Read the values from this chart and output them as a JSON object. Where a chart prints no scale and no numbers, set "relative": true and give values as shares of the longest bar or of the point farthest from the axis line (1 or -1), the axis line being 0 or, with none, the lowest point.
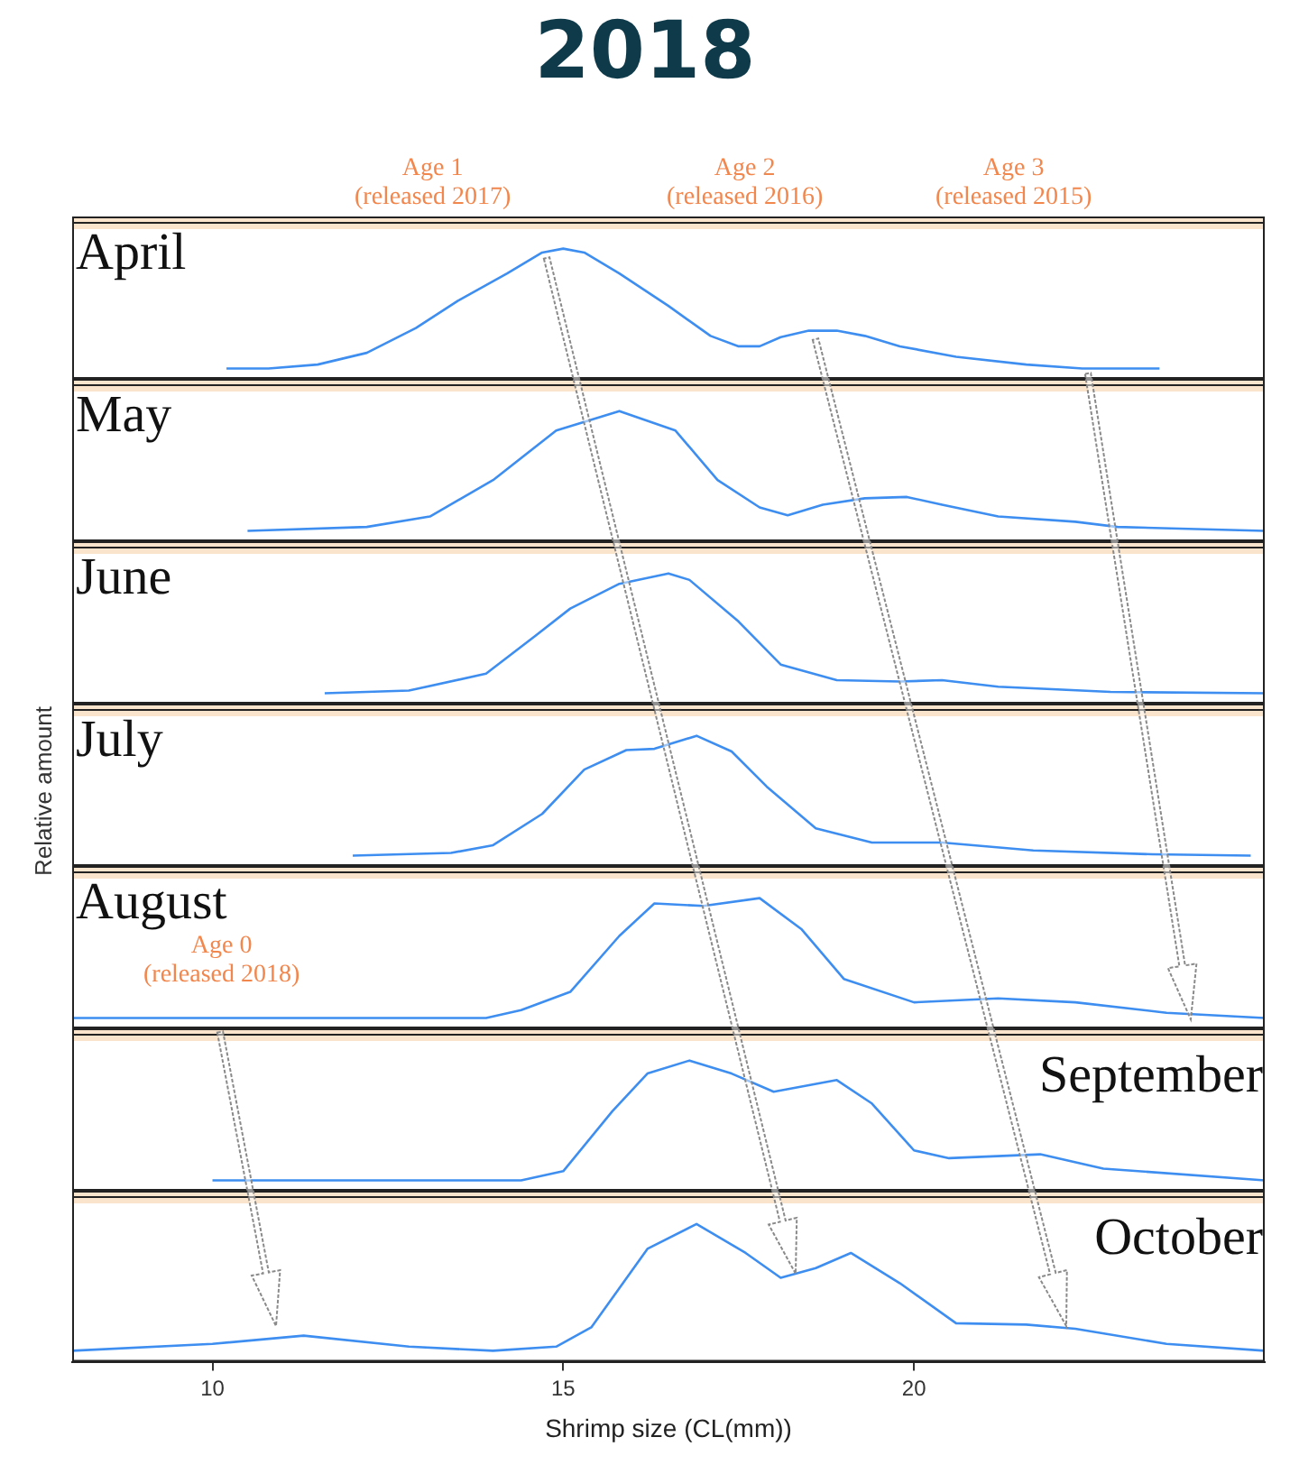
{
  "chart_data": [
    {
      "type": "line",
      "title": "2018",
      "subtitle": "April",
      "relative": true,
      "xlim": [
        8,
        25
      ],
      "xticks": [
        10,
        15,
        20
      ],
      "tick_labels": false,
      "marker": "none",
      "annotations": [
        "Age 1\n(released 2017)",
        "Age 2\n(released 2016)",
        "Age 3\n(released 2015)"
      ],
      "x": [
        10.2,
        10.8,
        11.5,
        12.2,
        12.9,
        13.5,
        14.2,
        14.7,
        15.0,
        15.3,
        15.8,
        16.5,
        17.1,
        17.5,
        17.8,
        18.1,
        18.5,
        18.9,
        19.3,
        19.8,
        20.6,
        21.6,
        22.4,
        23.5
      ],
      "series": [
        {
          "color": "#3d8ef0",
          "values": [
            0.08,
            0.08,
            0.11,
            0.2,
            0.39,
            0.6,
            0.81,
            0.97,
            1,
            0.97,
            0.81,
            0.56,
            0.33,
            0.25,
            0.25,
            0.32,
            0.37,
            0.37,
            0.33,
            0.25,
            0.17,
            0.11,
            0.08,
            0.08
          ]
        }
      ]
    },
    {
      "type": "line",
      "subtitle": "May",
      "relative": true,
      "xlim": [
        8,
        25
      ],
      "xticks": [
        10,
        15,
        20
      ],
      "tick_labels": false,
      "marker": "none",
      "x": [
        10.5,
        12.2,
        13.1,
        14.0,
        14.9,
        15.8,
        16.6,
        17.2,
        17.8,
        18.2,
        18.7,
        19.3,
        19.9,
        20.4,
        21.2,
        22.3,
        22.9,
        25.0
      ],
      "series": [
        {
          "color": "#3d8ef0",
          "values": [
            0.08,
            0.11,
            0.19,
            0.47,
            0.85,
            1,
            0.85,
            0.47,
            0.26,
            0.2,
            0.28,
            0.33,
            0.34,
            0.28,
            0.19,
            0.15,
            0.11,
            0.08
          ]
        }
      ]
    },
    {
      "type": "line",
      "subtitle": "June",
      "relative": true,
      "xlim": [
        8,
        25
      ],
      "xticks": [
        10,
        15,
        20
      ],
      "tick_labels": false,
      "marker": "none",
      "x": [
        11.6,
        12.8,
        13.9,
        14.6,
        15.1,
        15.8,
        16.5,
        16.8,
        17.5,
        18.1,
        18.9,
        19.8,
        20.4,
        21.2,
        22.8,
        25.0
      ],
      "series": [
        {
          "color": "#3d8ef0",
          "values": [
            0.08,
            0.1,
            0.23,
            0.52,
            0.73,
            0.92,
            1,
            0.95,
            0.63,
            0.3,
            0.18,
            0.17,
            0.18,
            0.13,
            0.09,
            0.08
          ]
        }
      ]
    },
    {
      "type": "line",
      "subtitle": "July",
      "ylabel": "Relative amount",
      "relative": true,
      "xlim": [
        8,
        25
      ],
      "xticks": [
        10,
        15,
        20
      ],
      "tick_labels": false,
      "marker": "none",
      "x": [
        12.0,
        13.4,
        14.0,
        14.7,
        15.3,
        15.9,
        16.3,
        16.9,
        17.4,
        17.9,
        18.6,
        19.4,
        20.4,
        21.7,
        23.4,
        24.8
      ],
      "series": [
        {
          "color": "#3d8ef0",
          "values": [
            0.08,
            0.1,
            0.16,
            0.4,
            0.74,
            0.89,
            0.9,
            1,
            0.88,
            0.61,
            0.29,
            0.18,
            0.18,
            0.12,
            0.09,
            0.08
          ]
        }
      ]
    },
    {
      "type": "line",
      "subtitle": "August",
      "relative": true,
      "xlim": [
        8,
        25
      ],
      "xticks": [
        10,
        15,
        20
      ],
      "tick_labels": false,
      "marker": "none",
      "annotations": [
        "Age 0\n(released 2018)"
      ],
      "x": [
        8.0,
        13.9,
        14.4,
        15.1,
        15.8,
        16.3,
        17.0,
        17.8,
        18.4,
        19.0,
        20.0,
        21.2,
        22.3,
        23.6,
        25.0
      ],
      "series": [
        {
          "color": "#3d8ef0",
          "values": [
            0.08,
            0.08,
            0.14,
            0.28,
            0.71,
            0.96,
            0.94,
            1,
            0.76,
            0.38,
            0.2,
            0.23,
            0.2,
            0.12,
            0.08
          ]
        }
      ]
    },
    {
      "type": "line",
      "subtitle": "September",
      "relative": true,
      "xlim": [
        8,
        25
      ],
      "xticks": [
        10,
        15,
        20
      ],
      "tick_labels": false,
      "marker": "none",
      "x": [
        10.0,
        14.4,
        15.0,
        15.7,
        16.2,
        16.8,
        17.4,
        18.0,
        18.9,
        19.4,
        20.0,
        20.5,
        21.8,
        22.7,
        25.0
      ],
      "series": [
        {
          "color": "#3d8ef0",
          "values": [
            0.08,
            0.08,
            0.15,
            0.61,
            0.9,
            1,
            0.9,
            0.76,
            0.85,
            0.67,
            0.31,
            0.25,
            0.28,
            0.17,
            0.08
          ]
        }
      ]
    },
    {
      "type": "line",
      "subtitle": "October",
      "xlabel": "Shrimp size (CL(mm))",
      "relative": true,
      "xlim": [
        8,
        25
      ],
      "xticks": [
        10,
        15,
        20
      ],
      "tick_labels": "x",
      "marker": "none",
      "x": [
        8.0,
        10.0,
        11.3,
        12.8,
        14.0,
        14.9,
        15.4,
        16.2,
        16.9,
        17.6,
        18.1,
        18.6,
        19.1,
        19.8,
        20.6,
        21.6,
        22.3,
        23.6,
        25.0
      ],
      "series": [
        {
          "color": "#3d8ef0",
          "values": [
            0.08,
            0.13,
            0.19,
            0.11,
            0.08,
            0.11,
            0.25,
            0.82,
            1,
            0.79,
            0.61,
            0.68,
            0.79,
            0.57,
            0.28,
            0.27,
            0.24,
            0.13,
            0.08
          ]
        }
      ]
    }
  ]
}
